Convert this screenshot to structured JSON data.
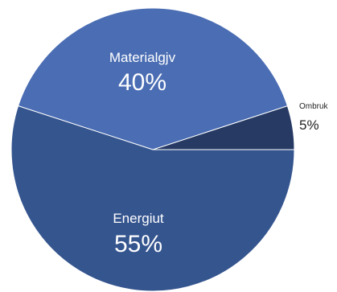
{
  "chart_data": {
    "type": "pie",
    "title": "",
    "slices": [
      {
        "label": "Ombruk",
        "value": 5,
        "value_label": "5%",
        "color": "#263a64",
        "label_placement": "outside"
      },
      {
        "label": "Materialgjv",
        "value": 40,
        "value_label": "40%",
        "color": "#4a6db3",
        "label_placement": "inside"
      },
      {
        "label": "Energiut",
        "value": 55,
        "value_label": "55%",
        "color": "#35558f",
        "label_placement": "inside"
      }
    ],
    "start_angle_deg": 0,
    "direction": "counterclockwise",
    "legend": "none"
  }
}
